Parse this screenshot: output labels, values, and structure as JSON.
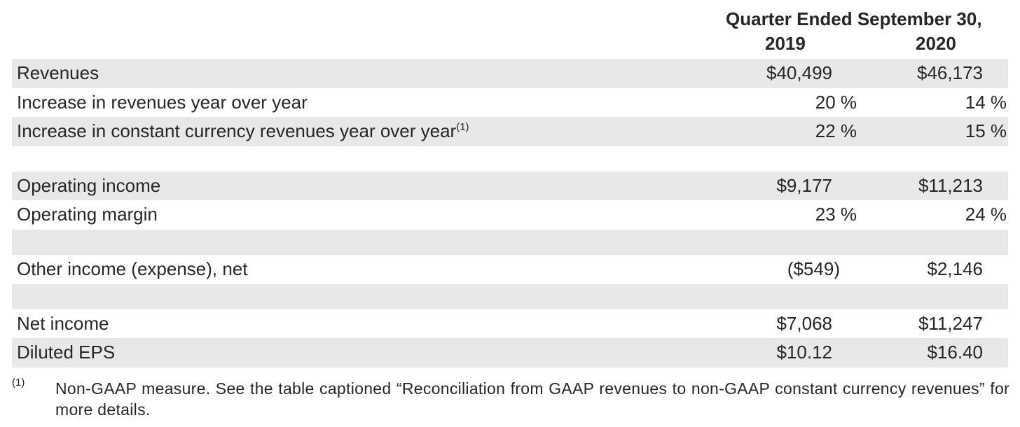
{
  "header": {
    "period": "Quarter Ended September 30,",
    "year_2019": "2019",
    "year_2020": "2020"
  },
  "rows": [
    {
      "label": "Revenues",
      "v2019": "$40,499",
      "v2020": "$46,173"
    },
    {
      "label": "Increase in revenues year over year",
      "v2019": "20 %",
      "v2020": "14 %"
    },
    {
      "label": "Increase in constant currency revenues year over year",
      "sup": "(1)",
      "v2019": "22 %",
      "v2020": "15 %"
    },
    {
      "label": "Operating income",
      "v2019": "$9,177",
      "v2020": "$11,213"
    },
    {
      "label": "Operating margin",
      "v2019": "23 %",
      "v2020": "24 %"
    },
    {
      "label": "Other income (expense), net",
      "v2019": "($549)",
      "v2020": "$2,146"
    },
    {
      "label": "Net income",
      "v2019": "$7,068",
      "v2020": "$11,247"
    },
    {
      "label": "Diluted EPS",
      "v2019": "$10.12",
      "v2020": "$16.40"
    }
  ],
  "footnote": {
    "mark": "(1)",
    "text": "Non-GAAP measure. See the table captioned “Reconciliation from GAAP revenues to non-GAAP constant currency revenues” for more details."
  },
  "colors": {
    "row_shade": "#e7e8ea",
    "text": "#262626"
  }
}
